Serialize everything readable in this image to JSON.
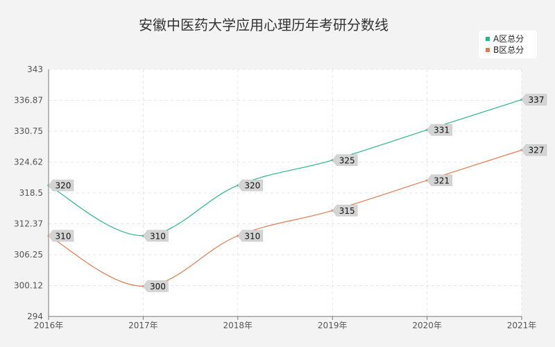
{
  "chart_data": {
    "type": "line",
    "title": "安徽中医药大学应用心理历年考研分数线",
    "categories": [
      "2016年",
      "2017年",
      "2018年",
      "2019年",
      "2020年",
      "2021年"
    ],
    "y_ticks": [
      "343",
      "336.87",
      "330.75",
      "324.62",
      "318.5",
      "312.37",
      "306.25",
      "300.12",
      "294"
    ],
    "ylim": [
      294,
      343
    ],
    "grid": true,
    "legend_position": "top-right",
    "series": [
      {
        "name": "A区总分",
        "color": "#2bb48c",
        "values": [
          320,
          310,
          320,
          325,
          331,
          337
        ]
      },
      {
        "name": "B区总分",
        "color": "#e07a4d",
        "values": [
          310,
          300,
          310,
          315,
          321,
          327
        ]
      }
    ]
  }
}
